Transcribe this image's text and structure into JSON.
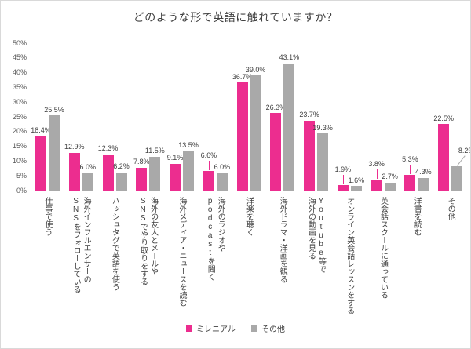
{
  "title": "どのような形で英語に触れていますか？",
  "chart_data": {
    "type": "bar",
    "title": "どのような形で英語に触れていますか？",
    "xlabel": "",
    "ylabel": "",
    "ylim": [
      0,
      50
    ],
    "ytick_step": 5,
    "yticks": [
      "0%",
      "5%",
      "10%",
      "15%",
      "20%",
      "25%",
      "30%",
      "35%",
      "40%",
      "45%",
      "50%"
    ],
    "grid": "off",
    "legend_position": "bottom-center",
    "categories": [
      "仕事で使う",
      "海外インフルエンサーの\nSNSをフォローしている",
      "ハッシュタグで英語を使う",
      "海外の友人とメールや\nSNSでやり取りをする",
      "海外メディア・ニュースを読む",
      "海外のラジオや\npodcastを聞く",
      "洋楽を聴く",
      "海外ドラマ・洋画を観る",
      "Youtube等で\n海外の動画を見る",
      "オンライン英会話レッスンをする",
      "英会話スクールに通っている",
      "洋書を読む",
      "その他"
    ],
    "series": [
      {
        "key": "millennial",
        "name": "ミレニアル",
        "color": "#EC2D8F",
        "values": [
          18.4,
          12.9,
          12.3,
          7.8,
          9.1,
          6.6,
          36.7,
          26.3,
          23.7,
          1.9,
          3.8,
          5.3,
          22.5
        ]
      },
      {
        "key": "other",
        "name": "その他",
        "color": "#A9A9A9",
        "values": [
          25.5,
          6.0,
          6.2,
          11.5,
          13.5,
          6.0,
          39.0,
          43.1,
          19.3,
          1.6,
          2.7,
          4.3,
          8.2
        ]
      }
    ],
    "value_label_format": "0.0%",
    "label_leaders": [
      {
        "s": 0,
        "c": 5
      },
      {
        "s": 0,
        "c": 9
      },
      {
        "s": 0,
        "c": 10
      },
      {
        "s": 0,
        "c": 11
      },
      {
        "s": 1,
        "c": 12,
        "dx": 12,
        "slant": true
      }
    ]
  }
}
